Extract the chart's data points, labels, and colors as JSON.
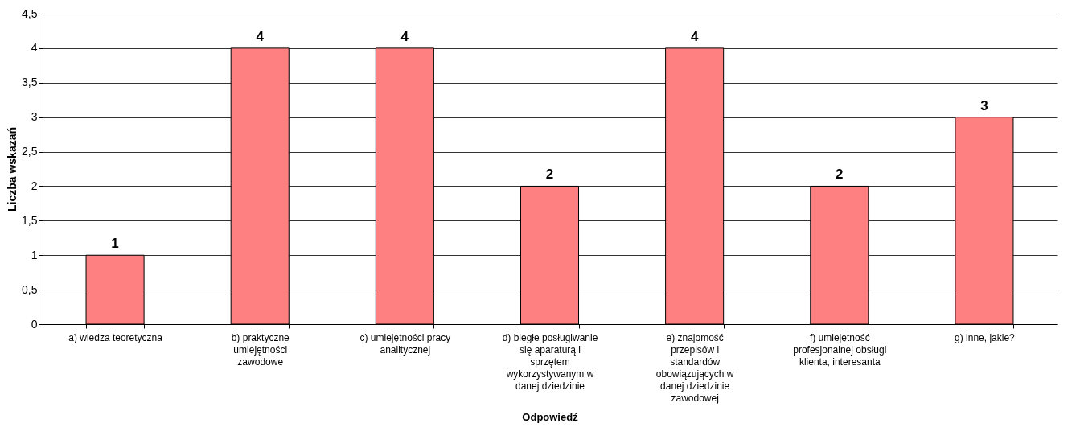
{
  "chart_data": {
    "type": "bar",
    "xlabel": "Odpowiedź",
    "ylabel": "Liczba wskazań",
    "categories": [
      "a) wiedza teoretyczna",
      "b) praktyczne umiejętności zawodowe",
      "c) umiejętności pracy analitycznej",
      "d) biegłe posługiwanie się aparaturą i sprzętem wykorzystywanym w danej dziedzinie",
      "e) znajomość przepisów i standardów obowiązujących w danej dziedzinie zawodowej",
      "f) umiejętność profesjonalnej obsługi klienta, interesanta",
      "g) inne, jakie?"
    ],
    "values": [
      1,
      4,
      4,
      2,
      4,
      2,
      3
    ],
    "color": "#ff8080",
    "data_labels": true,
    "grid": "y",
    "ylim": [
      0,
      4.5
    ],
    "yticks": [
      {
        "value": 0,
        "label": "0"
      },
      {
        "value": 0.5,
        "label": "0,5"
      },
      {
        "value": 1,
        "label": "1"
      },
      {
        "value": 1.5,
        "label": "1,5"
      },
      {
        "value": 2,
        "label": "2"
      },
      {
        "value": 2.5,
        "label": "2,5"
      },
      {
        "value": 3,
        "label": "3"
      },
      {
        "value": 3.5,
        "label": "3,5"
      },
      {
        "value": 4,
        "label": "4"
      },
      {
        "value": 4.5,
        "label": "4,5"
      }
    ]
  }
}
